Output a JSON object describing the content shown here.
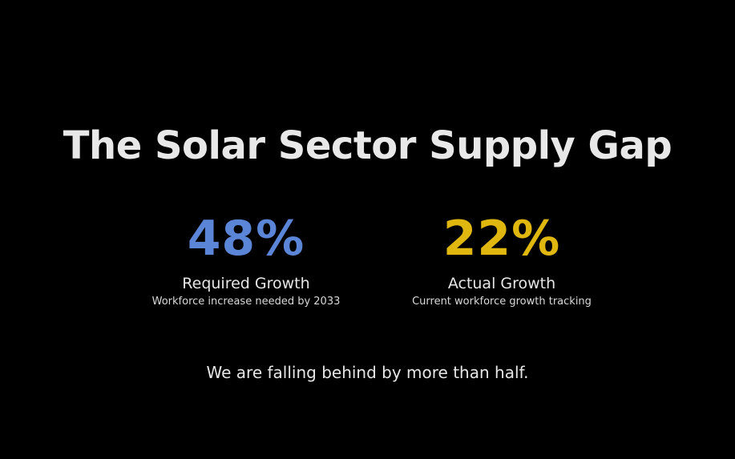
{
  "slide": {
    "title": "The Solar Sector Supply Gap",
    "stats": [
      {
        "value": "48%",
        "label": "Required Growth",
        "description": "Workforce increase needed by 2033",
        "color": "#5b86d8"
      },
      {
        "value": "22%",
        "label": "Actual Growth",
        "description": "Current workforce growth tracking",
        "color": "#dfb70f"
      }
    ],
    "tagline": "We are falling behind by more than half.",
    "background_color": "#000000",
    "text_color": "#e6e6e6"
  }
}
